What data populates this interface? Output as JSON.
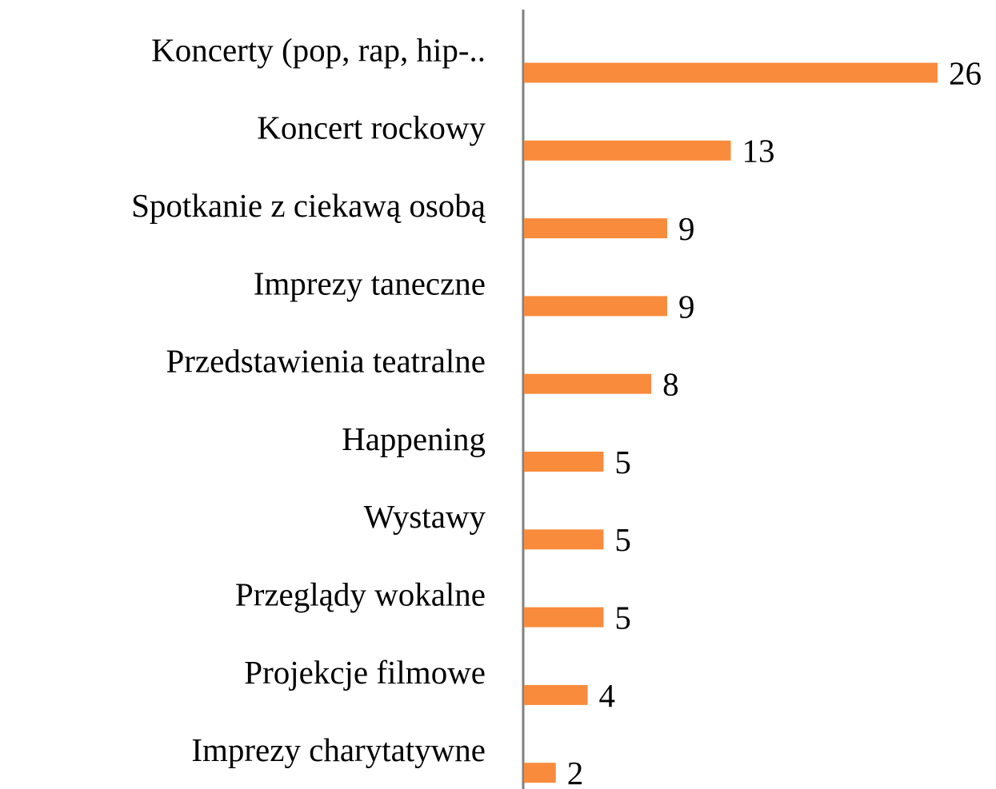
{
  "chart_data": {
    "type": "bar",
    "orientation": "horizontal",
    "categories": [
      "Koncerty (pop, rap, hip-..",
      "Koncert rockowy",
      "Spotkanie z ciekawą osobą",
      "Imprezy taneczne",
      "Przedstawienia teatralne",
      "Happening",
      "Wystawy",
      "Przeglądy wokalne",
      "Projekcje filmowe",
      "Imprezy charytatywne"
    ],
    "values": [
      26,
      13,
      9,
      9,
      8,
      5,
      5,
      5,
      4,
      2
    ],
    "color": "#f98b3c",
    "xlim": [
      0,
      26
    ]
  }
}
